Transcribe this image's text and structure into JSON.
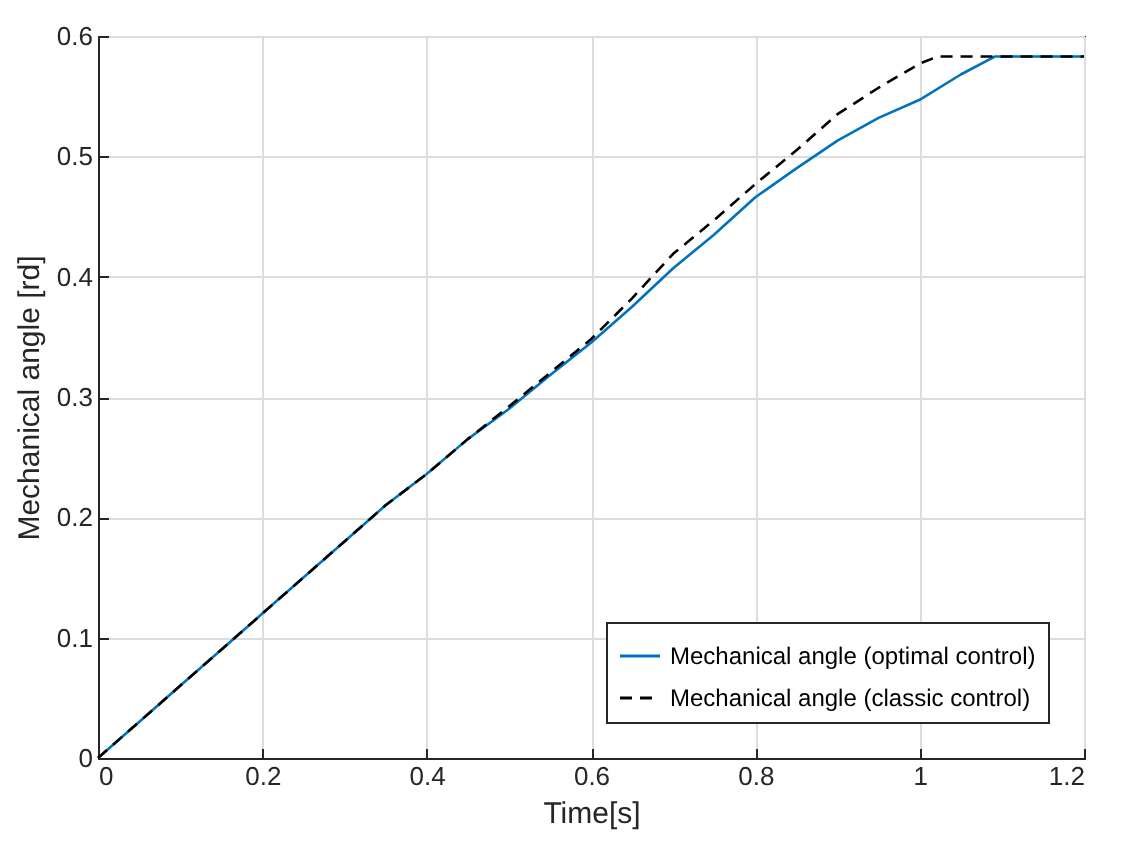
{
  "chart_data": {
    "type": "line",
    "xlabel": "Time[s]",
    "ylabel": "Mechanical angle [rd]",
    "xlim": [
      0,
      1.2
    ],
    "xticks": [
      0,
      0.2,
      0.4,
      0.6,
      0.8,
      1,
      1.2
    ],
    "ylim": [
      0,
      0.6
    ],
    "yticks": [
      0,
      0.1,
      0.2,
      0.3,
      0.4,
      0.5,
      0.6
    ],
    "grid": true,
    "legend": "bottom right",
    "series": [
      {
        "name": "Mechanical angle (optimal control)",
        "color": "#0072bd",
        "line_style": "solid",
        "x": [
          0,
          0.05,
          0.1,
          0.15,
          0.2,
          0.25,
          0.3,
          0.35,
          0.4,
          0.45,
          0.5,
          0.55,
          0.6,
          0.65,
          0.7,
          0.75,
          0.8,
          0.85,
          0.9,
          0.95,
          1.0,
          1.05,
          1.092,
          1.2
        ],
        "values": [
          0,
          0.03,
          0.06,
          0.09,
          0.12,
          0.15,
          0.18,
          0.21,
          0.236,
          0.265,
          0.29,
          0.318,
          0.345,
          0.375,
          0.407,
          0.435,
          0.466,
          0.49,
          0.513,
          0.532,
          0.547,
          0.568,
          0.583,
          0.583
        ]
      },
      {
        "name": "Mechanical angle (classic control)",
        "color": "#000000",
        "line_style": "dashed",
        "x": [
          0,
          0.05,
          0.1,
          0.15,
          0.2,
          0.25,
          0.3,
          0.35,
          0.4,
          0.45,
          0.5,
          0.55,
          0.6,
          0.65,
          0.7,
          0.75,
          0.8,
          0.85,
          0.9,
          0.95,
          1.0,
          1.022,
          1.2
        ],
        "values": [
          0,
          0.03,
          0.06,
          0.09,
          0.12,
          0.15,
          0.18,
          0.21,
          0.236,
          0.265,
          0.292,
          0.32,
          0.348,
          0.382,
          0.419,
          0.447,
          0.477,
          0.505,
          0.535,
          0.557,
          0.577,
          0.583,
          0.583
        ]
      }
    ]
  }
}
